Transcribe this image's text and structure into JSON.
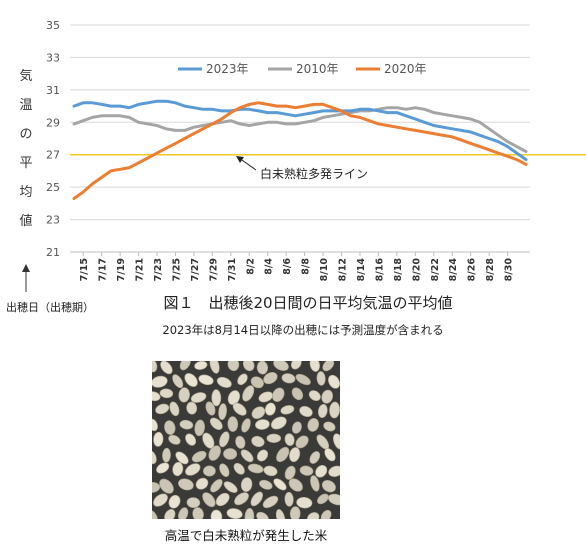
{
  "chart_data": {
    "type": "line",
    "title": "図１　出穂後20日間の日平均気温の平均値",
    "subtitle": "2023年は8月14日以降の出穂には予測温度が含まれる",
    "ylabel": "気温の平均値",
    "xlabel": "出穂日（出穂期）",
    "ylim": [
      21,
      35
    ],
    "yticks": [
      21,
      23,
      25,
      27,
      29,
      31,
      33,
      35
    ],
    "x_tick_labels": [
      "7/15",
      "7/17",
      "7/19",
      "7/21",
      "7/23",
      "7/25",
      "7/27",
      "7/29",
      "7/31",
      "8/2",
      "8/4",
      "8/6",
      "8/8",
      "8/10",
      "8/12",
      "8/14",
      "8/16",
      "8/18",
      "8/20",
      "8/22",
      "8/24",
      "8/26",
      "8/28",
      "8/30"
    ],
    "x_start": "7/14",
    "x_end": "8/31",
    "grid": true,
    "legend_position": "top",
    "series": [
      {
        "name": "2023年",
        "color": "#5b9bd5",
        "values": [
          30.0,
          30.2,
          30.2,
          30.1,
          30.0,
          30.0,
          29.9,
          30.1,
          30.2,
          30.3,
          30.3,
          30.2,
          30.0,
          29.9,
          29.8,
          29.8,
          29.7,
          29.7,
          29.8,
          29.8,
          29.7,
          29.6,
          29.6,
          29.5,
          29.4,
          29.5,
          29.6,
          29.7,
          29.7,
          29.7,
          29.7,
          29.8,
          29.8,
          29.7,
          29.6,
          29.6,
          29.4,
          29.2,
          29.0,
          28.8,
          28.7,
          28.6,
          28.5,
          28.4,
          28.2,
          28.0,
          27.8,
          27.5,
          27.1,
          26.7
        ]
      },
      {
        "name": "2010年",
        "color": "#a5a5a5",
        "values": [
          28.9,
          29.1,
          29.3,
          29.4,
          29.4,
          29.4,
          29.3,
          29.0,
          28.9,
          28.8,
          28.6,
          28.5,
          28.5,
          28.7,
          28.8,
          28.9,
          29.0,
          29.1,
          28.9,
          28.8,
          28.9,
          29.0,
          29.0,
          28.9,
          28.9,
          29.0,
          29.1,
          29.3,
          29.4,
          29.5,
          29.6,
          29.7,
          29.7,
          29.8,
          29.9,
          29.9,
          29.8,
          29.9,
          29.8,
          29.6,
          29.5,
          29.4,
          29.3,
          29.2,
          29.0,
          28.6,
          28.2,
          27.8,
          27.5,
          27.2
        ]
      },
      {
        "name": "2020年",
        "color": "#ed7d31",
        "values": [
          24.3,
          24.7,
          25.2,
          25.6,
          26.0,
          26.1,
          26.2,
          26.5,
          26.8,
          27.1,
          27.4,
          27.7,
          28.0,
          28.3,
          28.6,
          28.9,
          29.2,
          29.6,
          29.9,
          30.1,
          30.2,
          30.1,
          30.0,
          30.0,
          29.9,
          30.0,
          30.1,
          30.1,
          29.9,
          29.7,
          29.4,
          29.3,
          29.1,
          28.9,
          28.8,
          28.7,
          28.6,
          28.5,
          28.4,
          28.3,
          28.2,
          28.1,
          27.9,
          27.7,
          27.5,
          27.3,
          27.1,
          26.9,
          26.7,
          26.4
        ]
      }
    ],
    "reference_line": {
      "y": 27,
      "color": "#f2c400",
      "label": "白未熟粒多発ライン"
    }
  },
  "photo_caption": "高温で白未熟粒が発生した米",
  "photo_colors": {
    "background": "#3a3a38",
    "grain": "#d8d2c2",
    "grain_edge": "#a89e88"
  }
}
